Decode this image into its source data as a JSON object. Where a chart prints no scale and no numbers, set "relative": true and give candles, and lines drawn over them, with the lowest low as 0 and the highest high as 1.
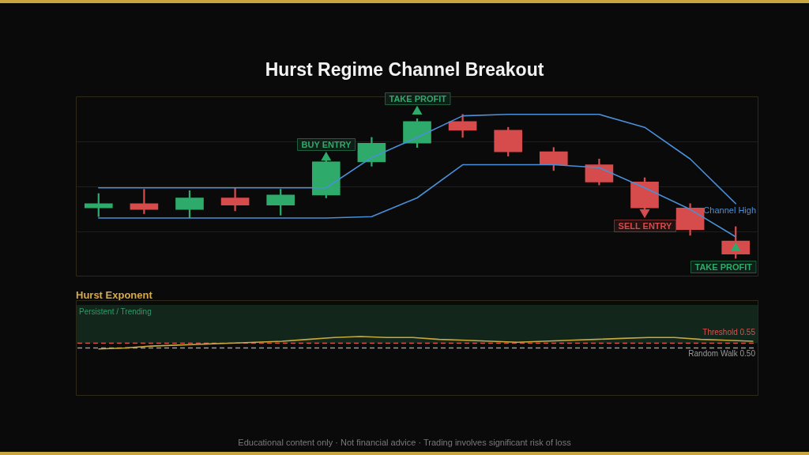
{
  "chart_data": [
    {
      "type": "candlestick",
      "title": "Hurst Regime Channel Breakout",
      "categories": [
        null,
        null,
        null,
        null,
        null,
        null,
        null,
        null,
        null,
        null,
        null,
        null,
        null,
        null,
        null
      ],
      "relative": true,
      "grid": "y",
      "ohlc": [
        [
          0.35,
          0.45,
          0.29,
          0.38
        ],
        [
          0.38,
          0.48,
          0.31,
          0.34
        ],
        [
          0.34,
          0.47,
          0.28,
          0.42
        ],
        [
          0.42,
          0.49,
          0.33,
          0.37
        ],
        [
          0.37,
          0.48,
          0.3,
          0.44
        ],
        [
          0.44,
          0.68,
          0.42,
          0.67
        ],
        [
          0.67,
          0.84,
          0.64,
          0.8
        ],
        [
          0.8,
          0.97,
          0.77,
          0.95
        ],
        [
          0.95,
          1.0,
          0.84,
          0.89
        ],
        [
          0.89,
          0.91,
          0.71,
          0.74
        ],
        [
          0.74,
          0.77,
          0.61,
          0.65
        ],
        [
          0.65,
          0.69,
          0.51,
          0.53
        ],
        [
          0.53,
          0.56,
          0.34,
          0.35
        ],
        [
          0.35,
          0.38,
          0.16,
          0.2
        ],
        [
          0.12,
          0.22,
          0,
          0.03
        ]
      ],
      "colors": [
        "#2eaa6b",
        "#d64b4b",
        "#2eaa6b",
        "#d64b4b",
        "#2eaa6b",
        "#2eaa6b",
        "#2eaa6b",
        "#2eaa6b",
        "#d64b4b",
        "#d64b4b",
        "#d64b4b",
        "#d64b4b",
        "#d64b4b",
        "#d64b4b",
        "#d64b4b"
      ],
      "series": [
        {
          "name": "Channel High",
          "type": "line",
          "color": "#4a8fd9",
          "values": [
            0.49,
            0.49,
            0.49,
            0.49,
            0.49,
            0.49,
            0.7,
            0.84,
            0.99,
            1.0,
            1.0,
            1.0,
            0.91,
            0.69,
            0.38
          ]
        },
        {
          "type": "line",
          "color": "#4a8fd9",
          "values": [
            0.28,
            0.28,
            0.28,
            0.28,
            0.28,
            0.28,
            0.29,
            0.42,
            0.65,
            0.65,
            0.65,
            0.63,
            0.49,
            0.34,
            0.15
          ]
        },
        {
          "name": "BUY ENTRY",
          "type": "scatter",
          "marker": "triangle",
          "color": "#2eaa6b",
          "values": [
            null,
            null,
            null,
            null,
            null,
            0.7,
            null,
            null,
            null,
            null,
            null,
            null,
            null,
            null,
            null
          ]
        },
        {
          "name": "TAKE PROFIT",
          "type": "scatter",
          "marker": "triangle",
          "color": "#2eaa6b",
          "values": [
            null,
            null,
            null,
            null,
            null,
            null,
            null,
            1.02,
            null,
            null,
            null,
            null,
            null,
            null,
            0.07
          ]
        },
        {
          "name": "SELL ENTRY",
          "type": "scatter",
          "marker": "triangle",
          "color": "#d64b4b",
          "values": [
            null,
            null,
            null,
            null,
            null,
            null,
            null,
            null,
            null,
            null,
            null,
            null,
            0.32,
            null,
            null
          ]
        }
      ]
    },
    {
      "type": "line",
      "title": "Hurst Exponent",
      "categories": [
        null,
        null,
        null,
        null,
        null,
        null,
        null,
        null,
        null,
        null,
        null,
        null,
        null,
        null,
        null,
        null,
        null,
        null,
        null,
        null,
        null,
        null,
        null,
        null,
        null,
        null
      ],
      "ylim": [
        0,
        1
      ],
      "tick_labels": false,
      "series": [
        {
          "color": "#c9a93b",
          "values": [
            0.49,
            0.5,
            0.52,
            0.53,
            0.54,
            0.55,
            0.56,
            0.57,
            0.59,
            0.61,
            0.62,
            0.61,
            0.61,
            0.59,
            0.58,
            0.57,
            0.56,
            0.57,
            0.58,
            0.59,
            0.6,
            0.61,
            0.61,
            0.59,
            0.58,
            0.57
          ]
        }
      ],
      "bands": [
        {
          "axis": "y",
          "from": 0.55,
          "to": 0.95,
          "label": "Persistent / Trending",
          "color": "#12261c"
        }
      ],
      "ref_lines": [
        {
          "axis": "y",
          "value": 0.55,
          "label": "Threshold 0.55",
          "color": "#d9534f",
          "line_style": "dashed"
        },
        {
          "axis": "y",
          "value": 0.5,
          "label": "Random Walk 0.50",
          "color": "#9a9a9a",
          "line_style": "dashed"
        }
      ],
      "annotations": [
        "Educational content only · Not financial advice · Trading involves significant risk of loss"
      ]
    }
  ]
}
